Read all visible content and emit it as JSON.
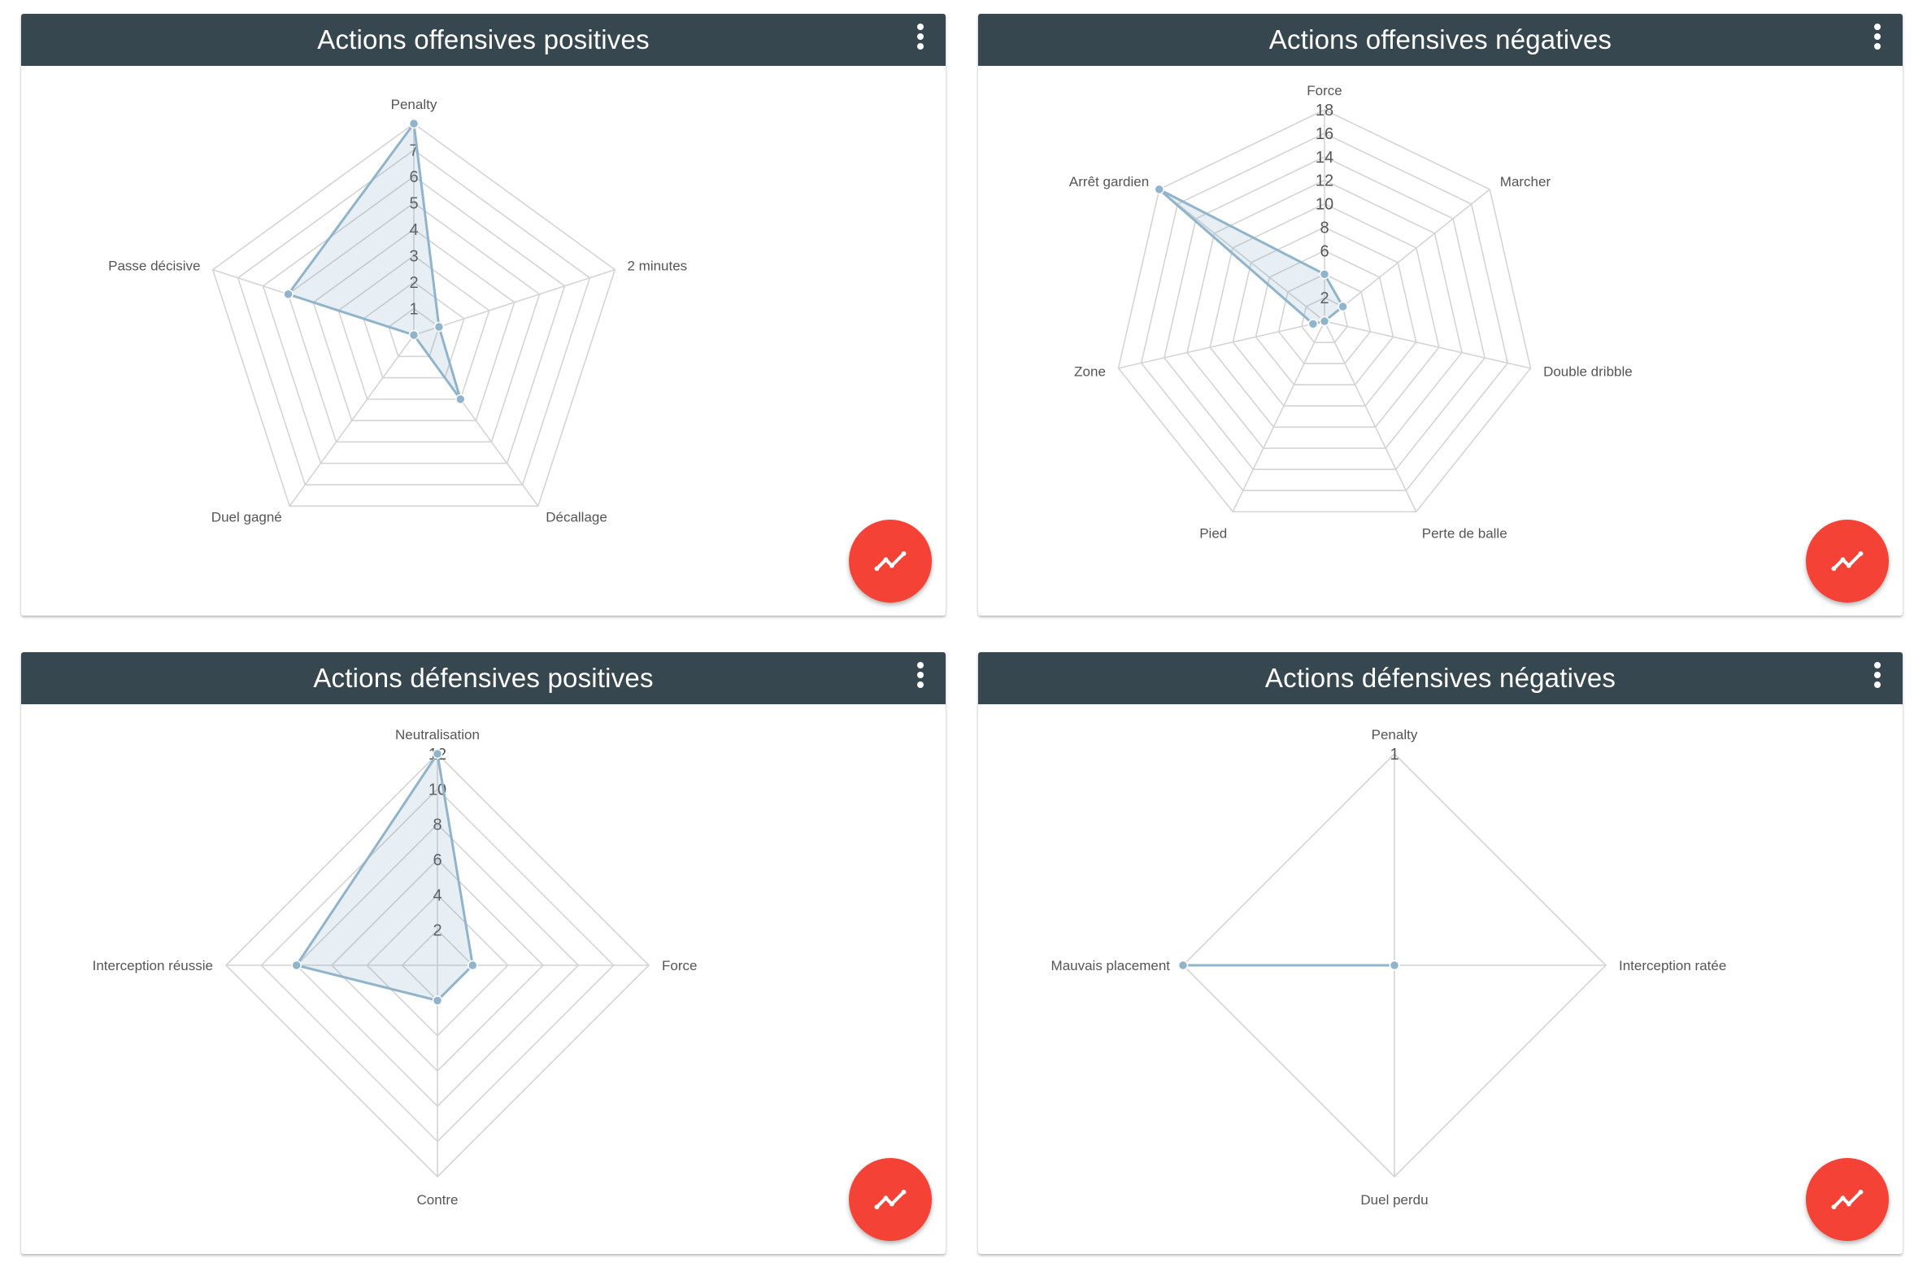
{
  "colors": {
    "header": "#37474f",
    "fab": "#f44336",
    "series": "#8fb4cc",
    "grid": "#d4d4d4"
  },
  "icons": {
    "menu": "more-vert-icon",
    "fab": "trending-up-icon"
  },
  "cards": [
    {
      "title": "Actions offensives positives",
      "chart_data": {
        "type": "radar",
        "categories": [
          "Penalty",
          "2 minutes",
          "Décallage",
          "Duel gagné",
          "Passe décisive"
        ],
        "values": [
          8,
          1,
          3,
          0,
          5
        ],
        "ticks": [
          "1",
          "2",
          "3",
          "4",
          "5",
          "6",
          "7"
        ],
        "rmax": 8,
        "grid_levels": 8
      }
    },
    {
      "title": "Actions offensives négatives",
      "chart_data": {
        "type": "radar",
        "categories": [
          "Force",
          "Marcher",
          "Double dribble",
          "Perte de balle",
          "Pied",
          "Zone",
          "Arrêt gardien"
        ],
        "values": [
          4,
          2,
          0,
          0,
          0,
          1,
          18
        ],
        "ticks": [
          "2",
          "6",
          "8",
          "10",
          "12",
          "14",
          "16",
          "18"
        ],
        "rmax": 18,
        "grid_levels": 9
      }
    },
    {
      "title": "Actions défensives positives",
      "chart_data": {
        "type": "radar",
        "categories": [
          "Neutralisation",
          "Force",
          "Contre",
          "Interception réussie"
        ],
        "values": [
          12,
          2,
          2,
          8
        ],
        "ticks": [
          "2",
          "4",
          "6",
          "8",
          "10",
          "12"
        ],
        "rmax": 12,
        "grid_levels": 6
      }
    },
    {
      "title": "Actions défensives négatives",
      "chart_data": {
        "type": "radar",
        "categories": [
          "Penalty",
          "Interception ratée",
          "Duel perdu",
          "Mauvais placement"
        ],
        "values": [
          0,
          0,
          0,
          1
        ],
        "ticks": [
          "1"
        ],
        "rmax": 1,
        "grid_levels": 1
      }
    }
  ]
}
